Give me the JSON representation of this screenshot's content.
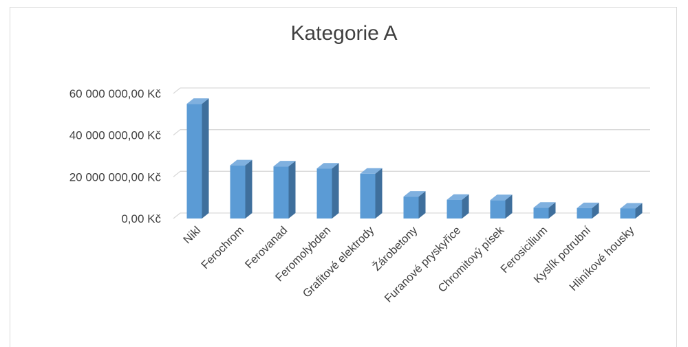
{
  "chart_data": {
    "type": "bar",
    "style": "3d-column",
    "title": "Kategorie A",
    "categories": [
      "Nikl",
      "Ferochrom",
      "Ferovanad",
      "Feromolybden",
      "Grafitové elektrody",
      "Žárobetony",
      "Furanové pryskyřice",
      "Chromitový písek",
      "Ferosicilium",
      "Kyslík potrubní",
      "Hliníkové housky"
    ],
    "values": [
      55000000,
      25500000,
      25000000,
      24000000,
      21500000,
      10500000,
      9000000,
      8800000,
      5200000,
      5000000,
      4800000
    ],
    "y_tick_labels": [
      "0,00 Kč",
      "20 000 000,00 Kč",
      "40 000 000,00 Kč",
      "60 000 000,00 Kč"
    ],
    "y_ticks": [
      0,
      20000000,
      40000000,
      60000000
    ],
    "ylim": [
      0,
      60000000
    ],
    "grid": true,
    "legend": "none",
    "colors": {
      "bar_front": "#5b9bd5",
      "bar_side": "#3f6f9c",
      "bar_top": "#7fb0df",
      "grid": "#d9d9d9",
      "text": "#404040"
    }
  }
}
